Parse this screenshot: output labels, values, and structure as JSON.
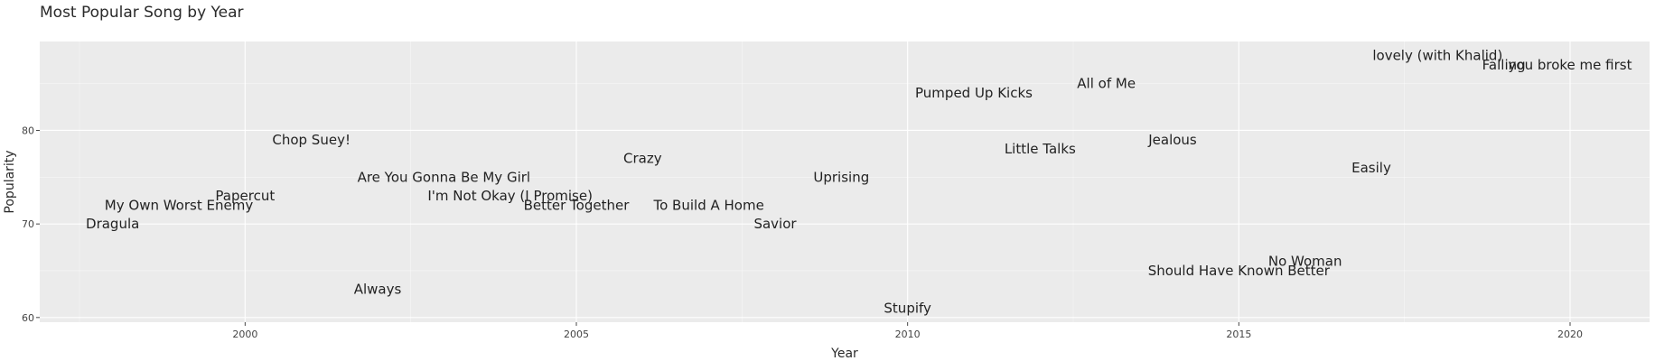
{
  "chart_data": {
    "type": "scatter",
    "title": "Most Popular Song by Year",
    "xlabel": "Year",
    "ylabel": "Popularity",
    "xlim": [
      1996.9,
      2021.2
    ],
    "ylim": [
      59.5,
      89.5
    ],
    "xticks": [
      2000,
      2005,
      2010,
      2015,
      2020
    ],
    "yticks": [
      60,
      70,
      80
    ],
    "grid": true,
    "background": "#ebebeb",
    "gridColor": "#ffffff",
    "points": [
      {
        "x": 1998,
        "y": 70,
        "label": "Dragula"
      },
      {
        "x": 1999,
        "y": 72,
        "label": "My Own Worst Enemy"
      },
      {
        "x": 2000,
        "y": 73,
        "label": "Papercut"
      },
      {
        "x": 2001,
        "y": 79,
        "label": "Chop Suey!"
      },
      {
        "x": 2002,
        "y": 63,
        "label": "Always"
      },
      {
        "x": 2003,
        "y": 75,
        "label": "Are You Gonna Be My Girl"
      },
      {
        "x": 2004,
        "y": 73,
        "label": "I'm Not Okay (I Promise)"
      },
      {
        "x": 2005,
        "y": 72,
        "label": "Better Together"
      },
      {
        "x": 2006,
        "y": 77,
        "label": "Crazy"
      },
      {
        "x": 2007,
        "y": 72,
        "label": "To Build A Home"
      },
      {
        "x": 2008,
        "y": 70,
        "label": "Savior"
      },
      {
        "x": 2009,
        "y": 75,
        "label": "Uprising"
      },
      {
        "x": 2010,
        "y": 61,
        "label": "Stupify"
      },
      {
        "x": 2011,
        "y": 84,
        "label": "Pumped Up Kicks"
      },
      {
        "x": 2012,
        "y": 78,
        "label": "Little Talks"
      },
      {
        "x": 2013,
        "y": 85,
        "label": "All of Me"
      },
      {
        "x": 2014,
        "y": 79,
        "label": "Jealous"
      },
      {
        "x": 2015,
        "y": 65,
        "label": "Should Have Known Better"
      },
      {
        "x": 2016,
        "y": 66,
        "label": "No Woman"
      },
      {
        "x": 2017,
        "y": 76,
        "label": "Easily"
      },
      {
        "x": 2018,
        "y": 88,
        "label": "lovely (with Khalid)"
      },
      {
        "x": 2019,
        "y": 87,
        "label": "Falling"
      },
      {
        "x": 2020,
        "y": 87,
        "label": "you broke me first"
      }
    ]
  }
}
